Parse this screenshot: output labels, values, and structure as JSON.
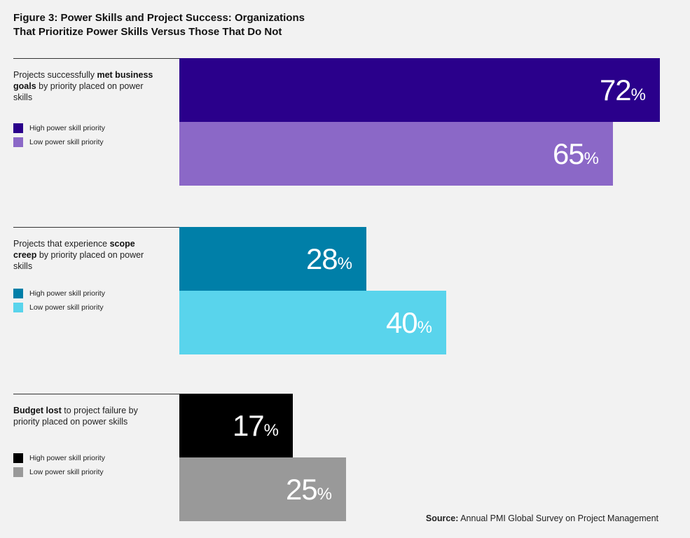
{
  "title": {
    "line1": "Figure 3: Power Skills and Project Success: Organizations",
    "line2": "That Prioritize Power Skills Versus Those That Do Not"
  },
  "legend": {
    "high": "High power skill priority",
    "low": "Low power skill priority"
  },
  "groups": [
    {
      "label_pre": "Projects successfully ",
      "label_bold": "met business goals",
      "label_post": " by priority placed on power skills",
      "high": {
        "value": "72",
        "unit": "%",
        "color": "#2a008b"
      },
      "low": {
        "value": "65",
        "unit": "%",
        "color": "#8b68c7"
      }
    },
    {
      "label_pre": "Projects that experience ",
      "label_bold": "scope creep",
      "label_post": " by priority placed on power skills",
      "high": {
        "value": "28",
        "unit": "%",
        "color": "#007fa8"
      },
      "low": {
        "value": "40",
        "unit": "%",
        "color": "#59d4ec"
      }
    },
    {
      "label_pre": "",
      "label_bold": "Budget lost",
      "label_post": " to project failure by priority placed on power skills",
      "high": {
        "value": "17",
        "unit": "%",
        "color": "#000000"
      },
      "low": {
        "value": "25",
        "unit": "%",
        "color": "#999999"
      }
    }
  ],
  "source": {
    "label": "Source:",
    "text": " Annual PMI Global Survey on Project Management"
  },
  "chart_data": {
    "type": "bar",
    "title": "Figure 3: Power Skills and Project Success: Organizations That Prioritize Power Skills Versus Those That Do Not",
    "categories": [
      "Projects successfully met business goals by priority placed on power skills",
      "Projects that experience scope creep by priority placed on power skills",
      "Budget lost to project failure by priority placed on power skills"
    ],
    "series": [
      {
        "name": "High power skill priority",
        "values": [
          72,
          28,
          17
        ]
      },
      {
        "name": "Low power skill priority",
        "values": [
          65,
          40,
          25
        ]
      }
    ],
    "ylim": [
      0,
      100
    ],
    "unit": "%",
    "orientation": "horizontal",
    "grid": false
  }
}
